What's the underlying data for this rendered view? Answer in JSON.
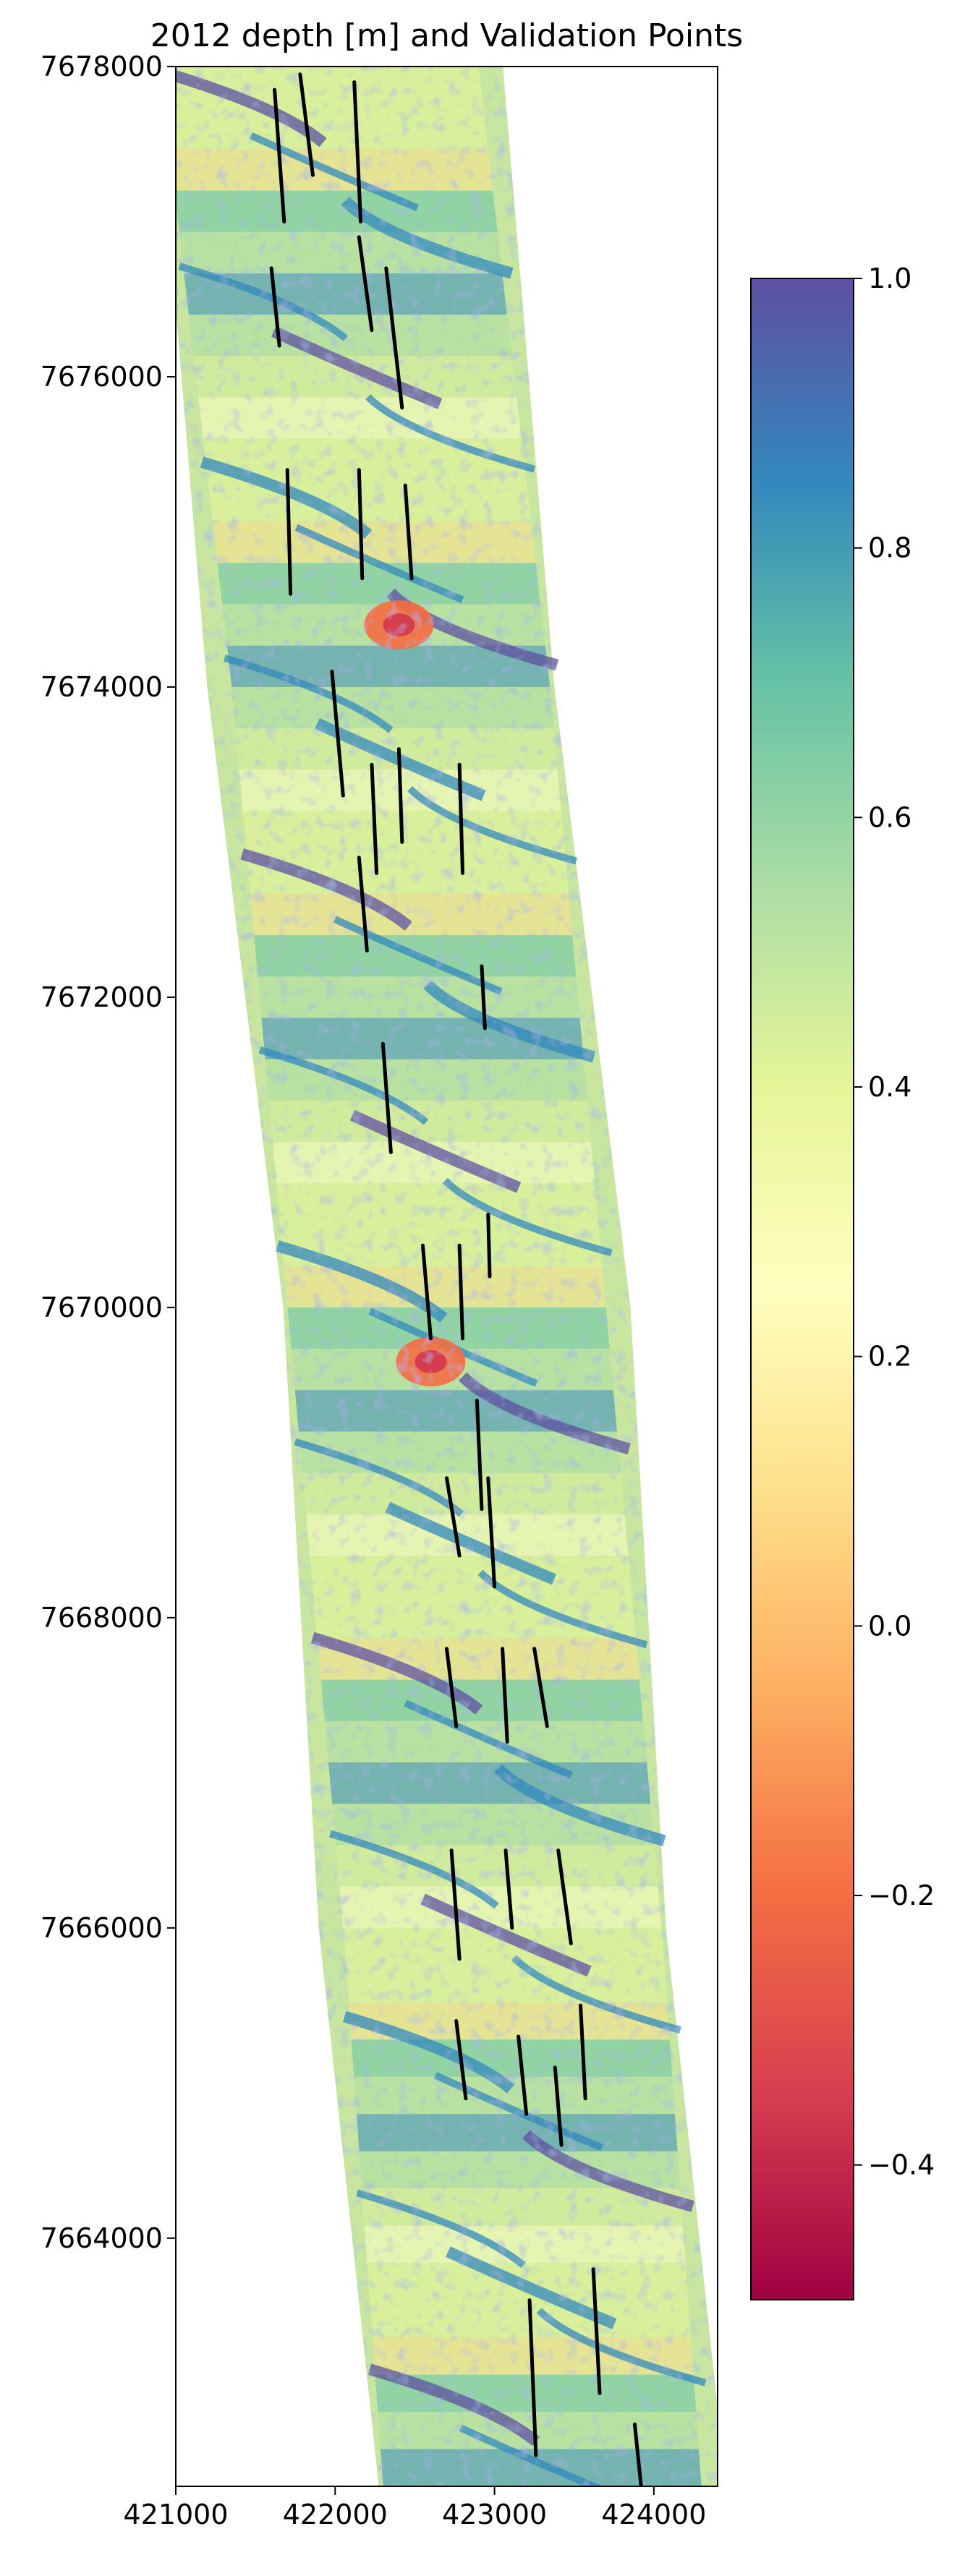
{
  "chart_data": {
    "type": "heatmap",
    "title": "2012 depth [m] and Validation Points",
    "xlabel": "",
    "ylabel": "",
    "xlim": [
      421000,
      424400
    ],
    "ylim": [
      7662400,
      7678000
    ],
    "x_ticks": [
      421000,
      422000,
      423000,
      424000
    ],
    "x_tick_labels": [
      "421000",
      "422000",
      "423000",
      "424000"
    ],
    "y_ticks": [
      7664000,
      7666000,
      7668000,
      7670000,
      7672000,
      7674000,
      7676000,
      7678000
    ],
    "y_tick_labels": [
      "7664000",
      "7666000",
      "7668000",
      "7670000",
      "7672000",
      "7674000",
      "7676000",
      "7678000"
    ],
    "grid": false,
    "colormap": "Spectral",
    "colorbar": {
      "range": [
        -0.5,
        1.0
      ],
      "ticks": [
        -0.4,
        -0.2,
        0.0,
        0.2,
        0.4,
        0.6,
        0.8,
        1.0
      ],
      "tick_labels": [
        "−0.4",
        "−0.2",
        "0.0",
        "0.2",
        "0.4",
        "0.6",
        "0.8",
        "1.0"
      ],
      "colors": [
        "#9e0142",
        "#d53e4f",
        "#f46d43",
        "#fdae61",
        "#fee08b",
        "#ffffbf",
        "#e6f598",
        "#abdda4",
        "#66c2a5",
        "#3288bd",
        "#5e4fa2"
      ]
    },
    "strip_centerline": [
      {
        "x": 421900,
        "y": 7678000
      },
      {
        "x": 422350,
        "y": 7674000
      },
      {
        "x": 422700,
        "y": 7670000
      },
      {
        "x": 423050,
        "y": 7666000
      },
      {
        "x": 423300,
        "y": 7662400
      }
    ],
    "validation_lines": [
      [
        [
          421620,
          7677850
        ],
        [
          421680,
          7677000
        ]
      ],
      [
        [
          421780,
          7677950
        ],
        [
          421860,
          7677300
        ]
      ],
      [
        [
          422120,
          7677900
        ],
        [
          422160,
          7677000
        ]
      ],
      [
        [
          421600,
          7676700
        ],
        [
          421650,
          7676200
        ]
      ],
      [
        [
          422150,
          7676900
        ],
        [
          422230,
          7676300
        ]
      ],
      [
        [
          422320,
          7676700
        ],
        [
          422420,
          7675800
        ]
      ],
      [
        [
          421700,
          7675400
        ],
        [
          421720,
          7674600
        ]
      ],
      [
        [
          422150,
          7675400
        ],
        [
          422170,
          7674700
        ]
      ],
      [
        [
          422440,
          7675300
        ],
        [
          422480,
          7674700
        ]
      ],
      [
        [
          421980,
          7674100
        ],
        [
          422050,
          7673300
        ]
      ],
      [
        [
          422230,
          7673500
        ],
        [
          422260,
          7672800
        ]
      ],
      [
        [
          422400,
          7673600
        ],
        [
          422420,
          7673000
        ]
      ],
      [
        [
          422780,
          7673500
        ],
        [
          422800,
          7672800
        ]
      ],
      [
        [
          422150,
          7672900
        ],
        [
          422200,
          7672300
        ]
      ],
      [
        [
          422920,
          7672200
        ],
        [
          422940,
          7671800
        ]
      ],
      [
        [
          422300,
          7671700
        ],
        [
          422350,
          7671000
        ]
      ],
      [
        [
          422550,
          7670400
        ],
        [
          422600,
          7669800
        ]
      ],
      [
        [
          422780,
          7670400
        ],
        [
          422800,
          7669800
        ]
      ],
      [
        [
          422960,
          7670600
        ],
        [
          422970,
          7670200
        ]
      ],
      [
        [
          422700,
          7668900
        ],
        [
          422780,
          7668400
        ]
      ],
      [
        [
          422890,
          7669400
        ],
        [
          422920,
          7668700
        ]
      ],
      [
        [
          422960,
          7668900
        ],
        [
          423000,
          7668200
        ]
      ],
      [
        [
          422700,
          7667800
        ],
        [
          422760,
          7667300
        ]
      ],
      [
        [
          423050,
          7667800
        ],
        [
          423080,
          7667200
        ]
      ],
      [
        [
          423250,
          7667800
        ],
        [
          423330,
          7667300
        ]
      ],
      [
        [
          422730,
          7666500
        ],
        [
          422780,
          7665800
        ]
      ],
      [
        [
          423070,
          7666500
        ],
        [
          423110,
          7666000
        ]
      ],
      [
        [
          423400,
          7666500
        ],
        [
          423480,
          7665900
        ]
      ],
      [
        [
          422760,
          7665400
        ],
        [
          422820,
          7664900
        ]
      ],
      [
        [
          423150,
          7665300
        ],
        [
          423200,
          7664800
        ]
      ],
      [
        [
          423540,
          7665500
        ],
        [
          423570,
          7664900
        ]
      ],
      [
        [
          423380,
          7665100
        ],
        [
          423420,
          7664600
        ]
      ],
      [
        [
          423220,
          7663600
        ],
        [
          423260,
          7662600
        ]
      ],
      [
        [
          423620,
          7663800
        ],
        [
          423660,
          7663000
        ]
      ],
      [
        [
          423880,
          7662800
        ],
        [
          423920,
          7662400
        ]
      ]
    ]
  }
}
